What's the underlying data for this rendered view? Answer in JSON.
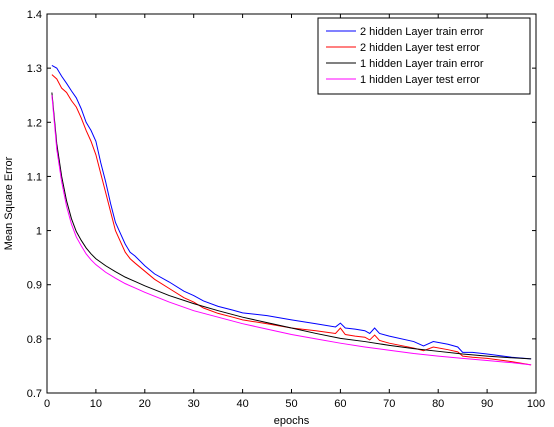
{
  "chart_data": {
    "type": "line",
    "title": "",
    "xlabel": "epochs",
    "ylabel": "Mean Square Error",
    "xlim": [
      0,
      100
    ],
    "ylim": [
      0.7,
      1.4
    ],
    "xticks": [
      0,
      10,
      20,
      30,
      40,
      50,
      60,
      70,
      80,
      90,
      100
    ],
    "yticks": [
      0.7,
      0.8,
      0.9,
      1,
      1.1,
      1.2,
      1.3,
      1.4
    ],
    "ytick_labels": [
      "0.7",
      "0.8",
      "0.9",
      "1",
      "1.1",
      "1.2",
      "1.3",
      "1.4"
    ],
    "grid": false,
    "legend_position": "top-right",
    "series": [
      {
        "name": "2 hidden Layer train error",
        "color": "#0000ff",
        "x": [
          1,
          2,
          3,
          4,
          5,
          6,
          7,
          8,
          9,
          10,
          11,
          12,
          13,
          14,
          15,
          16,
          17,
          18,
          20,
          22,
          25,
          28,
          30,
          32,
          35,
          38,
          40,
          45,
          50,
          55,
          59,
          60,
          61,
          63,
          65,
          66,
          67,
          68,
          70,
          75,
          77,
          79,
          82,
          84,
          85,
          87,
          90,
          95,
          99
        ],
        "y": [
          1.305,
          1.3,
          1.285,
          1.272,
          1.258,
          1.245,
          1.225,
          1.2,
          1.185,
          1.165,
          1.125,
          1.09,
          1.05,
          1.015,
          0.995,
          0.975,
          0.96,
          0.953,
          0.935,
          0.92,
          0.905,
          0.888,
          0.88,
          0.87,
          0.86,
          0.853,
          0.848,
          0.843,
          0.835,
          0.828,
          0.822,
          0.829,
          0.82,
          0.818,
          0.815,
          0.81,
          0.82,
          0.81,
          0.805,
          0.795,
          0.787,
          0.795,
          0.79,
          0.785,
          0.775,
          0.775,
          0.772,
          0.766,
          0.763
        ]
      },
      {
        "name": "2 hidden Layer test error",
        "color": "#ff0000",
        "x": [
          1,
          2,
          3,
          4,
          5,
          6,
          7,
          8,
          9,
          10,
          11,
          12,
          13,
          14,
          15,
          16,
          17,
          18,
          20,
          22,
          25,
          28,
          30,
          32,
          35,
          38,
          40,
          45,
          50,
          55,
          59,
          60,
          61,
          63,
          65,
          66,
          67,
          68,
          70,
          75,
          77,
          79,
          82,
          84,
          85,
          87,
          90,
          95,
          99
        ],
        "y": [
          1.288,
          1.28,
          1.263,
          1.255,
          1.24,
          1.228,
          1.208,
          1.185,
          1.165,
          1.14,
          1.105,
          1.07,
          1.035,
          1.0,
          0.98,
          0.96,
          0.948,
          0.94,
          0.925,
          0.91,
          0.893,
          0.876,
          0.868,
          0.857,
          0.847,
          0.84,
          0.835,
          0.828,
          0.82,
          0.815,
          0.81,
          0.82,
          0.808,
          0.805,
          0.803,
          0.798,
          0.807,
          0.797,
          0.792,
          0.783,
          0.778,
          0.785,
          0.78,
          0.776,
          0.768,
          0.766,
          0.764,
          0.758,
          0.752
        ]
      },
      {
        "name": "1 hidden Layer train error",
        "color": "#000000",
        "x": [
          1,
          2,
          3,
          4,
          5,
          6,
          7,
          8,
          9,
          10,
          12,
          14,
          16,
          18,
          20,
          25,
          30,
          35,
          40,
          45,
          50,
          55,
          60,
          65,
          70,
          75,
          80,
          85,
          90,
          95,
          99
        ],
        "y": [
          1.255,
          1.16,
          1.1,
          1.055,
          1.022,
          0.998,
          0.982,
          0.968,
          0.957,
          0.948,
          0.935,
          0.924,
          0.914,
          0.906,
          0.898,
          0.88,
          0.865,
          0.852,
          0.84,
          0.83,
          0.82,
          0.81,
          0.801,
          0.795,
          0.788,
          0.782,
          0.777,
          0.772,
          0.768,
          0.765,
          0.763
        ]
      },
      {
        "name": "1 hidden Layer test error",
        "color": "#ff00ff",
        "x": [
          1,
          2,
          3,
          4,
          5,
          6,
          7,
          8,
          9,
          10,
          12,
          14,
          16,
          18,
          20,
          25,
          30,
          35,
          40,
          45,
          50,
          55,
          60,
          65,
          70,
          75,
          80,
          85,
          90,
          95,
          99
        ],
        "y": [
          1.25,
          1.15,
          1.09,
          1.045,
          1.012,
          0.988,
          0.972,
          0.957,
          0.946,
          0.937,
          0.923,
          0.912,
          0.902,
          0.894,
          0.886,
          0.868,
          0.852,
          0.84,
          0.828,
          0.818,
          0.808,
          0.8,
          0.792,
          0.785,
          0.779,
          0.773,
          0.768,
          0.764,
          0.76,
          0.756,
          0.752
        ]
      }
    ]
  }
}
